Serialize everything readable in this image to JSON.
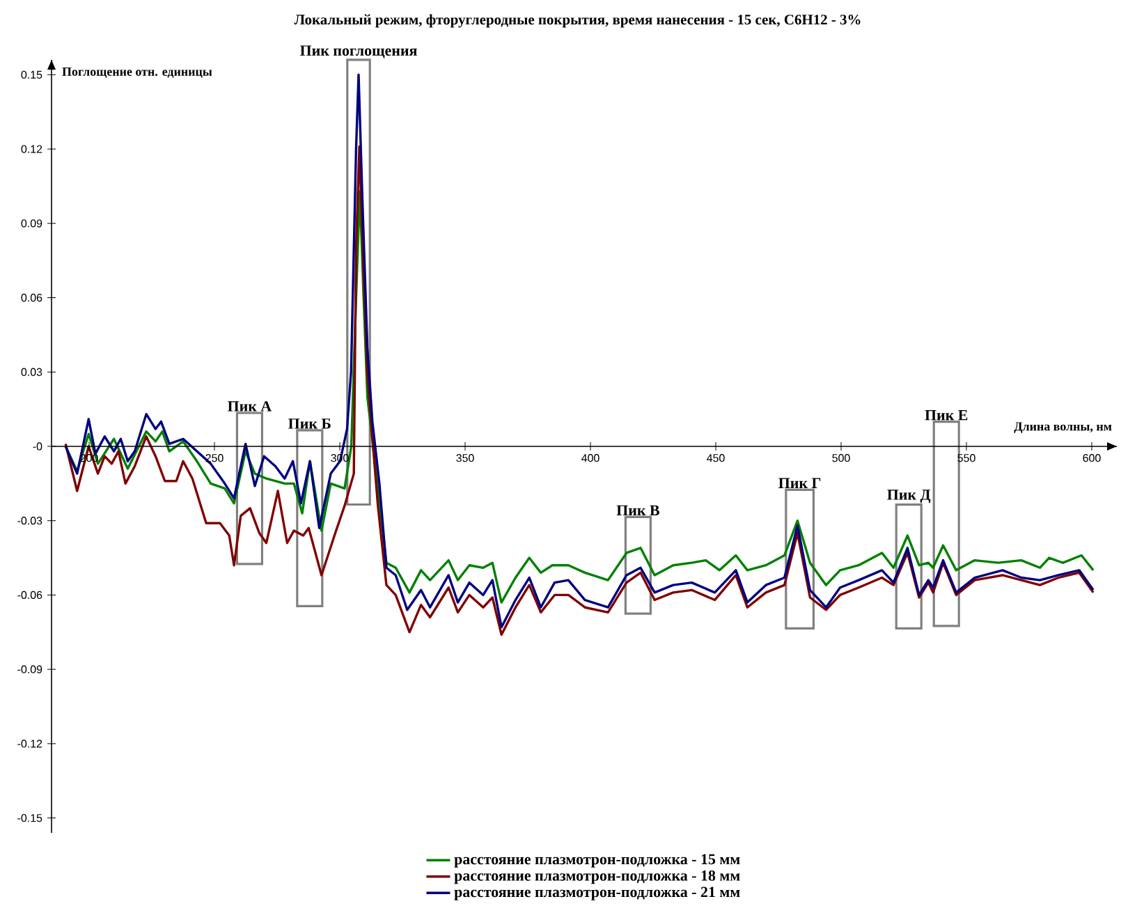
{
  "chart_data": {
    "type": "line",
    "title": "Локальный режим, фторуглеродные покрытия, время нанесения - 15 сек, C6H12 - 3%",
    "xlabel": "Длина волны, нм",
    "ylabel": "Поглощение отн. единицы",
    "xlim": [
      185,
      610
    ],
    "ylim": [
      -0.156,
      0.156
    ],
    "xticks": [
      200,
      250,
      300,
      350,
      400,
      450,
      500,
      550,
      600
    ],
    "yticks": [
      -0.15,
      -0.12,
      -0.09,
      -0.06,
      -0.03,
      {
        "value": 0,
        "label": "-0"
      },
      0.03,
      0.06,
      0.09,
      0.12,
      0.15
    ],
    "grid": false,
    "legend": "bottom",
    "marker": "none",
    "line_style": "solid",
    "series": [
      {
        "name": "расстояние плазмотрон-подложка - 15 мм",
        "color": "#008000",
        "x": [
          190.6,
          195.2,
          199.8,
          203.5,
          209.9,
          215.4,
          222.8,
          226.5,
          229.2,
          232,
          237.5,
          243,
          248.5,
          254.1,
          257.8,
          262.4,
          266.1,
          270.7,
          278,
          281.7,
          285,
          288.1,
          292.7,
          296.4,
          301.9,
          304.6,
          306.5,
          308,
          309.5,
          311,
          313.3,
          316,
          318.6,
          322.3,
          327.8,
          332.4,
          336,
          343.4,
          347.1,
          351.7,
          357.2,
          360.9,
          364.5,
          370.1,
          375.6,
          380.2,
          384.8,
          391.2,
          397.8,
          407,
          414.4,
          420,
          425.6,
          433,
          440.4,
          446,
          451.5,
          458,
          462.6,
          470,
          477.4,
          482.6,
          487.6,
          494,
          499.6,
          507,
          516.3,
          520.9,
          526.5,
          531.1,
          534.8,
          536.7,
          540.7,
          545.9,
          553.3,
          562.6,
          571.9,
          579.3,
          583,
          588.5,
          595.9,
          600.6
        ],
        "values": [
          0.0,
          -0.01,
          0.005,
          -0.007,
          0.003,
          -0.009,
          0.006,
          0.002,
          0.006,
          -0.002,
          0.002,
          -0.006,
          -0.015,
          -0.017,
          -0.023,
          -0.002,
          -0.011,
          -0.013,
          -0.015,
          -0.015,
          -0.027,
          -0.006,
          -0.034,
          -0.015,
          -0.017,
          0.0,
          0.06,
          0.103,
          0.06,
          0.02,
          0.0,
          -0.024,
          -0.047,
          -0.049,
          -0.059,
          -0.05,
          -0.054,
          -0.046,
          -0.054,
          -0.048,
          -0.049,
          -0.047,
          -0.063,
          -0.053,
          -0.045,
          -0.051,
          -0.048,
          -0.048,
          -0.051,
          -0.054,
          -0.043,
          -0.041,
          -0.052,
          -0.048,
          -0.047,
          -0.046,
          -0.05,
          -0.044,
          -0.05,
          -0.048,
          -0.044,
          -0.03,
          -0.047,
          -0.056,
          -0.05,
          -0.048,
          -0.043,
          -0.049,
          -0.036,
          -0.048,
          -0.047,
          -0.049,
          -0.04,
          -0.05,
          -0.046,
          -0.047,
          -0.046,
          -0.049,
          -0.045,
          -0.047,
          -0.044,
          -0.05
        ]
      },
      {
        "name": "расстояние плазмотрон-подложка - 18 мм",
        "color": "#800000",
        "x": [
          190.6,
          195.2,
          199.8,
          203.5,
          206.2,
          209,
          211.7,
          214.5,
          218.2,
          222.8,
          226.5,
          230.2,
          234.8,
          237.5,
          241.2,
          246.7,
          252.2,
          255.9,
          257.8,
          260.5,
          264.2,
          267.9,
          270.7,
          275.3,
          279,
          281.7,
          285.4,
          287.6,
          292.7,
          298.2,
          301.9,
          305.6,
          306.5,
          307.8,
          309.5,
          311,
          312.4,
          315.2,
          318.6,
          322.3,
          327.8,
          332.4,
          336,
          343.4,
          347.1,
          351.7,
          357.2,
          360.9,
          364.5,
          370.1,
          375.6,
          380.2,
          385.7,
          391.2,
          397.8,
          407,
          414.4,
          420,
          425.6,
          433,
          440.4,
          449.6,
          458,
          462.6,
          470,
          477.4,
          482.6,
          487.6,
          494,
          499.6,
          507,
          516.3,
          520.9,
          526.5,
          531.1,
          534.8,
          536.7,
          540.7,
          545.9,
          553.3,
          564.4,
          571.9,
          579.3,
          586.7,
          595,
          600.6
        ],
        "values": [
          0.001,
          -0.018,
          0.0,
          -0.011,
          -0.004,
          -0.007,
          -0.002,
          -0.015,
          -0.008,
          0.004,
          -0.004,
          -0.014,
          -0.014,
          -0.006,
          -0.013,
          -0.031,
          -0.031,
          -0.036,
          -0.048,
          -0.028,
          -0.025,
          -0.035,
          -0.039,
          -0.018,
          -0.039,
          -0.034,
          -0.036,
          -0.033,
          -0.052,
          -0.035,
          -0.024,
          -0.011,
          0.08,
          0.121,
          0.07,
          0.03,
          0.011,
          -0.024,
          -0.056,
          -0.06,
          -0.075,
          -0.064,
          -0.069,
          -0.057,
          -0.067,
          -0.06,
          -0.065,
          -0.061,
          -0.076,
          -0.065,
          -0.056,
          -0.067,
          -0.06,
          -0.06,
          -0.065,
          -0.067,
          -0.055,
          -0.051,
          -0.062,
          -0.059,
          -0.058,
          -0.062,
          -0.052,
          -0.065,
          -0.059,
          -0.056,
          -0.035,
          -0.061,
          -0.066,
          -0.06,
          -0.057,
          -0.053,
          -0.056,
          -0.043,
          -0.061,
          -0.055,
          -0.059,
          -0.047,
          -0.06,
          -0.054,
          -0.052,
          -0.054,
          -0.056,
          -0.053,
          -0.051,
          -0.059
        ]
      },
      {
        "name": "расстояние плазмотрон-подложка - 21 мм",
        "color": "#000080",
        "x": [
          190.6,
          195.2,
          199.8,
          202.5,
          206.2,
          209.9,
          212.6,
          215.4,
          218.2,
          222.8,
          226.5,
          228.7,
          232,
          237.5,
          243,
          248.5,
          254.1,
          257.8,
          262.4,
          266.1,
          269.8,
          274.3,
          278,
          281.3,
          284.5,
          288.1,
          291.8,
          296.4,
          300.1,
          302.9,
          304.5,
          306.5,
          307.5,
          309,
          311,
          313,
          315.8,
          318.6,
          322.3,
          326.9,
          332.4,
          336,
          343.4,
          347.1,
          351.7,
          357.2,
          360.9,
          364.5,
          370.1,
          375.6,
          380.2,
          385.7,
          391.2,
          397.8,
          407,
          414.4,
          420,
          425.6,
          433,
          440.4,
          449.6,
          458,
          462.6,
          470,
          477.4,
          482.6,
          487.6,
          494,
          499.6,
          507,
          516.3,
          520.9,
          526.5,
          531.1,
          534.8,
          536.7,
          540.7,
          545.9,
          553.3,
          564.4,
          571.9,
          579.3,
          586.7,
          595,
          600.6
        ],
        "values": [
          0.0,
          -0.011,
          0.011,
          -0.003,
          0.004,
          -0.002,
          0.003,
          -0.006,
          -0.002,
          0.013,
          0.007,
          0.01,
          0.001,
          0.003,
          -0.002,
          -0.007,
          -0.015,
          -0.021,
          0.001,
          -0.016,
          -0.004,
          -0.008,
          -0.013,
          -0.006,
          -0.023,
          -0.006,
          -0.033,
          -0.011,
          -0.006,
          0.007,
          0.03,
          0.12,
          0.15,
          0.1,
          0.04,
          0.01,
          -0.015,
          -0.049,
          -0.052,
          -0.066,
          -0.058,
          -0.065,
          -0.052,
          -0.063,
          -0.055,
          -0.06,
          -0.054,
          -0.073,
          -0.062,
          -0.053,
          -0.065,
          -0.055,
          -0.054,
          -0.062,
          -0.065,
          -0.052,
          -0.049,
          -0.059,
          -0.056,
          -0.055,
          -0.059,
          -0.05,
          -0.063,
          -0.056,
          -0.053,
          -0.032,
          -0.058,
          -0.065,
          -0.057,
          -0.054,
          -0.05,
          -0.055,
          -0.041,
          -0.06,
          -0.054,
          -0.057,
          -0.046,
          -0.059,
          -0.053,
          -0.05,
          -0.053,
          -0.054,
          -0.052,
          -0.05,
          -0.058
        ]
      }
    ],
    "bands": [
      {
        "axis": "x",
        "from": 259,
        "to": 269,
        "color": "#808080",
        "label": "Пик А"
      },
      {
        "axis": "x",
        "from": 283,
        "to": 293,
        "color": "#808080",
        "label": "Пик Б"
      },
      {
        "axis": "x",
        "from": 303,
        "to": 312,
        "color": "#808080",
        "label": "Пик поглощения"
      },
      {
        "axis": "x",
        "from": 414,
        "to": 424,
        "color": "#808080",
        "label": "Пик В"
      },
      {
        "axis": "x",
        "from": 478,
        "to": 489,
        "color": "#808080",
        "label": "Пик Г"
      },
      {
        "axis": "x",
        "from": 522,
        "to": 532,
        "color": "#808080",
        "label": "Пик Д"
      },
      {
        "axis": "x",
        "from": 537,
        "to": 547,
        "color": "#808080",
        "label": "Пик Е"
      }
    ]
  }
}
